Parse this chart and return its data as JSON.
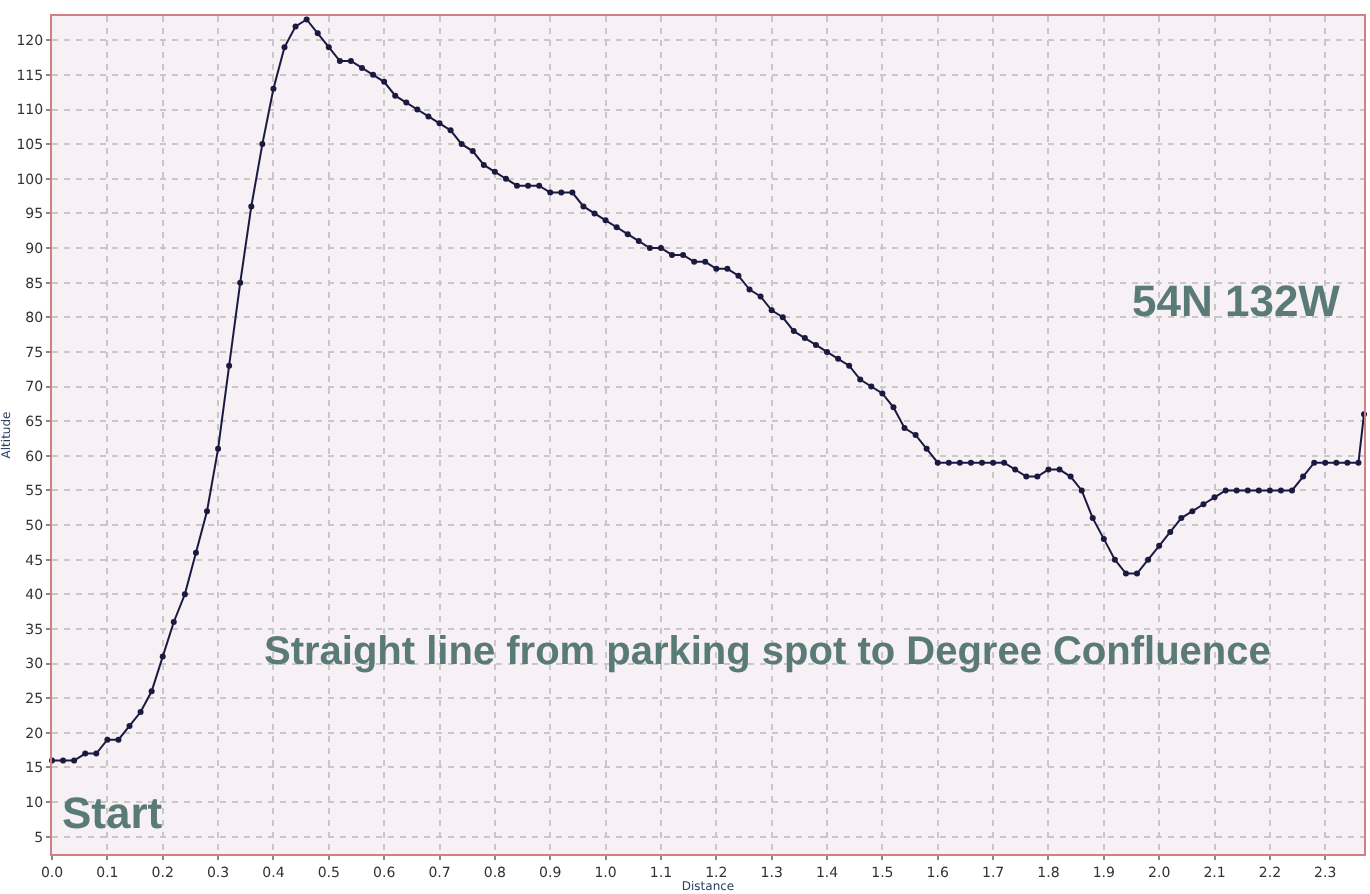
{
  "chart_data": {
    "type": "line",
    "xlabel": "Distance",
    "ylabel": "Altitude",
    "annotations": [
      "54N 132W",
      "Straight line from parking spot to Degree Confluence",
      "Start"
    ],
    "x": [
      0.0,
      0.02,
      0.04,
      0.06,
      0.08,
      0.1,
      0.12,
      0.14,
      0.16,
      0.18,
      0.2,
      0.22,
      0.24,
      0.26,
      0.28,
      0.3,
      0.32,
      0.34,
      0.36,
      0.38,
      0.4,
      0.42,
      0.44,
      0.46,
      0.48,
      0.5,
      0.52,
      0.54,
      0.56,
      0.58,
      0.6,
      0.62,
      0.64,
      0.66,
      0.68,
      0.7,
      0.72,
      0.74,
      0.76,
      0.78,
      0.8,
      0.82,
      0.84,
      0.86,
      0.88,
      0.9,
      0.92,
      0.94,
      0.96,
      0.98,
      1.0,
      1.02,
      1.04,
      1.06,
      1.08,
      1.1,
      1.12,
      1.14,
      1.16,
      1.18,
      1.2,
      1.22,
      1.24,
      1.26,
      1.28,
      1.3,
      1.32,
      1.34,
      1.36,
      1.38,
      1.4,
      1.42,
      1.44,
      1.46,
      1.48,
      1.5,
      1.52,
      1.54,
      1.56,
      1.58,
      1.6,
      1.62,
      1.64,
      1.66,
      1.68,
      1.7,
      1.72,
      1.74,
      1.76,
      1.78,
      1.8,
      1.82,
      1.84,
      1.86,
      1.88,
      1.9,
      1.92,
      1.94,
      1.96,
      1.98,
      2.0,
      2.02,
      2.04,
      2.06,
      2.08,
      2.1,
      2.12,
      2.14,
      2.16,
      2.18,
      2.2,
      2.22,
      2.24,
      2.26,
      2.28,
      2.3,
      2.32,
      2.34,
      2.36,
      2.37
    ],
    "series": [
      {
        "color": "#1a1a40",
        "values": [
          16,
          16,
          16,
          17,
          17,
          19,
          19,
          21,
          23,
          26,
          31,
          36,
          40,
          46,
          52,
          61,
          73,
          85,
          96,
          105,
          113,
          119,
          122,
          123,
          121,
          119,
          117,
          117,
          116,
          115,
          114,
          112,
          111,
          110,
          109,
          108,
          107,
          105,
          104,
          102,
          101,
          100,
          99,
          99,
          99,
          98,
          98,
          98,
          96,
          95,
          94,
          93,
          92,
          91,
          90,
          90,
          89,
          89,
          88,
          88,
          87,
          87,
          86,
          84,
          83,
          81,
          80,
          78,
          77,
          76,
          75,
          74,
          73,
          71,
          70,
          69,
          67,
          64,
          63,
          61,
          59,
          59,
          59,
          59,
          59,
          59,
          59,
          58,
          57,
          57,
          58,
          58,
          57,
          55,
          51,
          48,
          45,
          43,
          43,
          45,
          47,
          49,
          51,
          52,
          53,
          54,
          55,
          55,
          55,
          55,
          55,
          55,
          55,
          57,
          59,
          59,
          59,
          59,
          59,
          66
        ]
      }
    ],
    "xlim": [
      0,
      2.37
    ],
    "ylim": [
      2.5,
      123.5
    ],
    "xticks": [
      {
        "value": 0,
        "label": "0.0"
      },
      {
        "value": 0.1,
        "label": "0.1"
      },
      {
        "value": 0.2,
        "label": "0.2"
      },
      {
        "value": 0.3,
        "label": "0.3"
      },
      {
        "value": 0.4,
        "label": "0.4"
      },
      {
        "value": 0.5,
        "label": "0.5"
      },
      {
        "value": 0.6,
        "label": "0.6"
      },
      {
        "value": 0.7,
        "label": "0.7"
      },
      {
        "value": 0.8,
        "label": "0.8"
      },
      {
        "value": 0.9,
        "label": "0.9"
      },
      {
        "value": 1.0,
        "label": "1.0"
      },
      {
        "value": 1.1,
        "label": "1.1"
      },
      {
        "value": 1.2,
        "label": "1.2"
      },
      {
        "value": 1.3,
        "label": "1.3"
      },
      {
        "value": 1.4,
        "label": "1.4"
      },
      {
        "value": 1.5,
        "label": "1.5"
      },
      {
        "value": 1.6,
        "label": "1.6"
      },
      {
        "value": 1.7,
        "label": "1.7"
      },
      {
        "value": 1.8,
        "label": "1.8"
      },
      {
        "value": 1.9,
        "label": "1.9"
      },
      {
        "value": 2.0,
        "label": "2.0"
      },
      {
        "value": 2.1,
        "label": "2.1"
      },
      {
        "value": 2.2,
        "label": "2.2"
      },
      {
        "value": 2.3,
        "label": "2.3"
      }
    ],
    "yticks": [
      5,
      10,
      15,
      20,
      25,
      30,
      35,
      40,
      45,
      50,
      55,
      60,
      65,
      70,
      75,
      80,
      85,
      90,
      95,
      100,
      105,
      110,
      115,
      120
    ],
    "grid": true,
    "marker": "circle",
    "line_style": "solid",
    "legend": false
  }
}
